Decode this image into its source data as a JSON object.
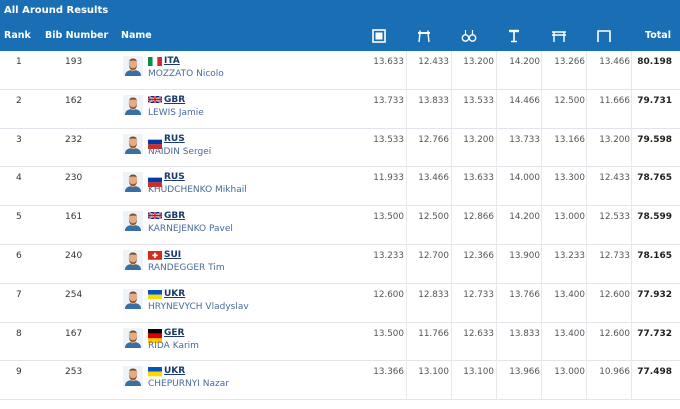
{
  "title": "All Around Results",
  "headers": {
    "rank": "Rank",
    "bib": "Bib Number",
    "name": "Name",
    "total": "Total"
  },
  "apparatus_icons": [
    "floor-exercise-icon",
    "pommel-horse-icon",
    "still-rings-icon",
    "vault-icon",
    "parallel-bars-icon",
    "horizontal-bar-icon"
  ],
  "rows": [
    {
      "rank": "1",
      "bib": "193",
      "country": "ITA",
      "name": "MOZZATO Nicolo",
      "flag": "ITA",
      "scores": [
        "13.633",
        "12.433",
        "13.200",
        "14.200",
        "13.266",
        "13.466"
      ],
      "total": "80.198"
    },
    {
      "rank": "2",
      "bib": "162",
      "country": "GBR",
      "name": "LEWIS Jamie",
      "flag": "GBR",
      "scores": [
        "13.733",
        "13.833",
        "13.533",
        "14.466",
        "12.500",
        "11.666"
      ],
      "total": "79.731"
    },
    {
      "rank": "3",
      "bib": "232",
      "country": "RUS",
      "name": "NAIDIN Sergei",
      "flag": "RUS",
      "scores": [
        "13.533",
        "12.766",
        "13.200",
        "13.733",
        "13.166",
        "13.200"
      ],
      "total": "79.598"
    },
    {
      "rank": "4",
      "bib": "230",
      "country": "RUS",
      "name": "KHUDCHENKO Mikhail",
      "flag": "RUS",
      "scores": [
        "11.933",
        "13.466",
        "13.633",
        "14.000",
        "13.300",
        "12.433"
      ],
      "total": "78.765"
    },
    {
      "rank": "5",
      "bib": "161",
      "country": "GBR",
      "name": "KARNEJENKO Pavel",
      "flag": "GBR",
      "scores": [
        "13.500",
        "12.500",
        "12.866",
        "14.200",
        "13.000",
        "12.533"
      ],
      "total": "78.599"
    },
    {
      "rank": "6",
      "bib": "240",
      "country": "SUI",
      "name": "RANDEGGER Tim",
      "flag": "SUI",
      "scores": [
        "13.233",
        "12.700",
        "12.366",
        "13.900",
        "13.233",
        "12.733"
      ],
      "total": "78.165"
    },
    {
      "rank": "7",
      "bib": "254",
      "country": "UKR",
      "name": "HRYNEVYCH Vladyslav",
      "flag": "UKR",
      "scores": [
        "12.600",
        "12.833",
        "12.733",
        "13.766",
        "13.400",
        "12.600"
      ],
      "total": "77.932"
    },
    {
      "rank": "8",
      "bib": "167",
      "country": "GER",
      "name": "RIDA Karim",
      "flag": "GER",
      "scores": [
        "13.500",
        "11.766",
        "12.633",
        "13.833",
        "13.400",
        "12.600"
      ],
      "total": "77.732"
    },
    {
      "rank": "9",
      "bib": "253",
      "country": "UKR",
      "name": "CHEPURNYI Nazar",
      "flag": "UKR",
      "scores": [
        "13.366",
        "13.100",
        "13.100",
        "13.966",
        "13.000",
        "10.966"
      ],
      "total": "77.498"
    }
  ]
}
